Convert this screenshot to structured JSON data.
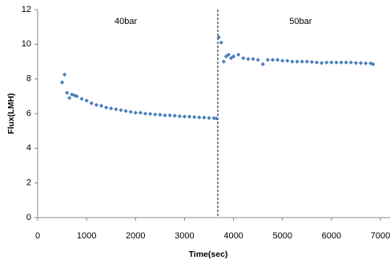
{
  "chart_data": {
    "type": "scatter",
    "x_label": "Time(sec)",
    "y_label": "Flux(LMH)",
    "x": [
      500,
      550,
      600,
      650,
      700,
      750,
      800,
      900,
      1000,
      1100,
      1200,
      1300,
      1400,
      1500,
      1600,
      1700,
      1800,
      1900,
      2000,
      2100,
      2200,
      2300,
      2400,
      2500,
      2600,
      2700,
      2800,
      2900,
      3000,
      3100,
      3200,
      3300,
      3400,
      3500,
      3600,
      3650,
      3700,
      3750,
      3800,
      3850,
      3900,
      3950,
      4000,
      4100,
      4200,
      4300,
      4400,
      4500,
      4600,
      4700,
      4800,
      4900,
      5000,
      5100,
      5200,
      5300,
      5400,
      5500,
      5600,
      5700,
      5800,
      5900,
      6000,
      6100,
      6200,
      6300,
      6400,
      6500,
      6600,
      6700,
      6800,
      6850
    ],
    "values": [
      7.8,
      8.25,
      7.2,
      6.9,
      7.1,
      7.05,
      7.0,
      6.85,
      6.75,
      6.6,
      6.5,
      6.45,
      6.35,
      6.3,
      6.25,
      6.2,
      6.15,
      6.1,
      6.05,
      6.05,
      6.0,
      5.98,
      5.95,
      5.93,
      5.9,
      5.9,
      5.88,
      5.85,
      5.83,
      5.82,
      5.8,
      5.78,
      5.77,
      5.75,
      5.74,
      5.72,
      10.4,
      10.1,
      9.0,
      9.3,
      9.4,
      9.2,
      9.3,
      9.4,
      9.2,
      9.15,
      9.15,
      9.1,
      8.85,
      9.1,
      9.1,
      9.1,
      9.05,
      9.05,
      9.0,
      9.0,
      9.0,
      9.0,
      8.98,
      8.95,
      8.92,
      8.95,
      8.95,
      8.95,
      8.95,
      8.95,
      8.95,
      8.92,
      8.92,
      8.9,
      8.9,
      8.85
    ],
    "color": "#4a7ebb",
    "xlim": [
      0,
      7000
    ],
    "xticks": [
      0,
      1000,
      2000,
      3000,
      4000,
      5000,
      6000,
      7000
    ],
    "ylim": [
      0,
      12
    ],
    "yticks": [
      0,
      2,
      4,
      6,
      8,
      10,
      12
    ],
    "reference_line_x": 3680,
    "annotations": [
      {
        "text": "40bar",
        "x": 1800,
        "y": 11.3
      },
      {
        "text": "50bar",
        "x": 5370,
        "y": 11.3
      }
    ]
  }
}
